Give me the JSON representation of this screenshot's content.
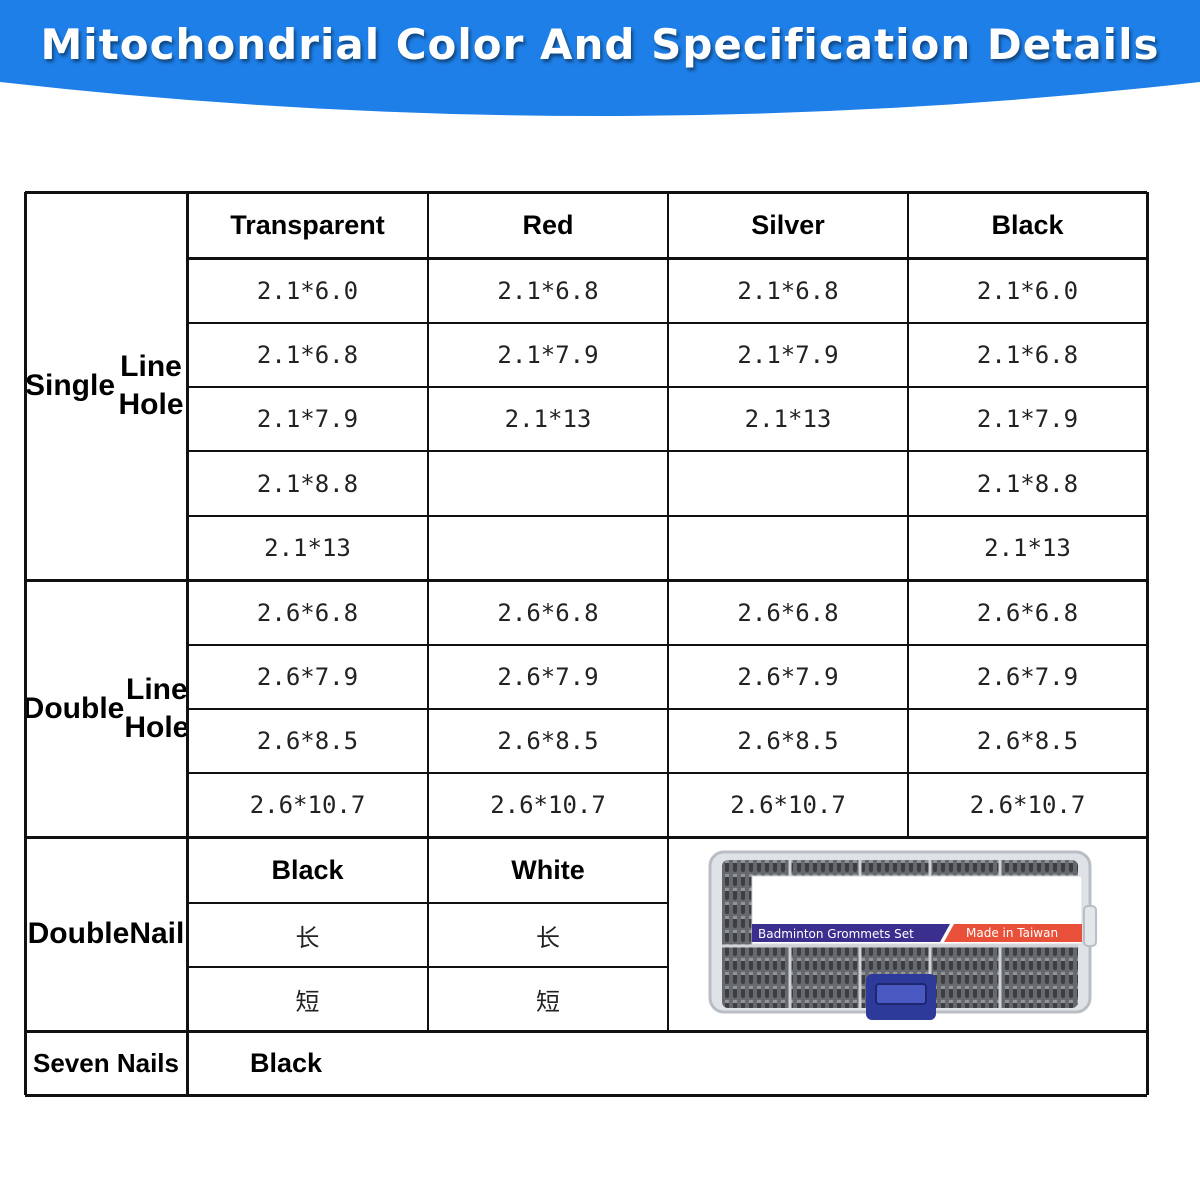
{
  "banner": {
    "title": "Mitochondrial Color And Specification Details",
    "color": "#1e7fe8"
  },
  "headers": [
    "Transparent",
    "Red",
    "Silver",
    "Black"
  ],
  "single_line_hole": {
    "label": "Single\nLine Hole",
    "rows": [
      [
        "2.1*6.0",
        "2.1*6.8",
        "2.1*6.8",
        "2.1*6.0"
      ],
      [
        "2.1*6.8",
        "2.1*7.9",
        "2.1*7.9",
        "2.1*6.8"
      ],
      [
        "2.1*7.9",
        "2.1*13",
        "2.1*13",
        "2.1*7.9"
      ],
      [
        "2.1*8.8",
        "",
        "",
        "2.1*8.8"
      ],
      [
        "2.1*13",
        "",
        "",
        "2.1*13"
      ]
    ]
  },
  "double_line_hole": {
    "label": "Double\nLine Hole",
    "rows": [
      [
        "2.6*6.8",
        "2.6*6.8",
        "2.6*6.8",
        "2.6*6.8"
      ],
      [
        "2.6*7.9",
        "2.6*7.9",
        "2.6*7.9",
        "2.6*7.9"
      ],
      [
        "2.6*8.5",
        "2.6*8.5",
        "2.6*8.5",
        "2.6*8.5"
      ],
      [
        "2.6*10.7",
        "2.6*10.7",
        "2.6*10.7",
        "2.6*10.7"
      ]
    ]
  },
  "double_nail": {
    "label": "Double\nNail",
    "headers": [
      "Black",
      "White"
    ],
    "rows": [
      [
        "长",
        "长"
      ],
      [
        "短",
        "短"
      ]
    ]
  },
  "product_box": {
    "label_left": "Badminton Grommets Set",
    "label_right": "Made in Taiwan",
    "label_colors": {
      "left": "#3a2f8f",
      "right": "#e8503a"
    }
  },
  "seven_nails": {
    "label": "Seven Nails",
    "value": "Black"
  }
}
